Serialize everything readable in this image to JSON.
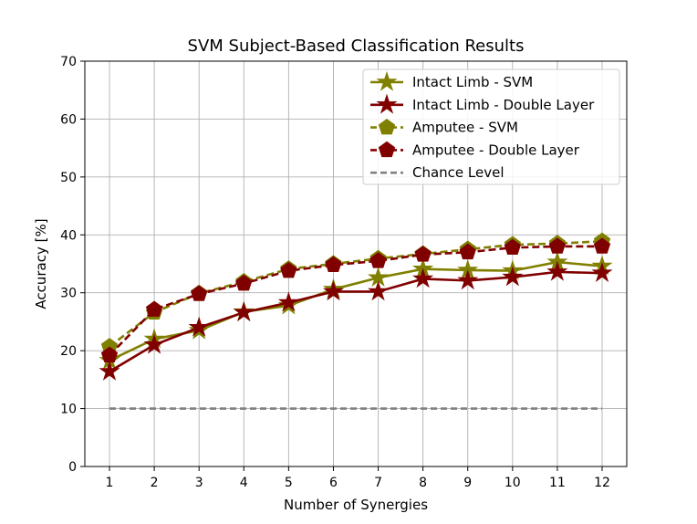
{
  "chart_data": {
    "type": "line",
    "title": "SVM Subject-Based Classification Results",
    "xlabel": "Number of Synergies",
    "ylabel": "Accuracy [%]",
    "x": [
      1,
      2,
      3,
      4,
      5,
      6,
      7,
      8,
      9,
      10,
      11,
      12
    ],
    "xticks": [
      "1",
      "2",
      "3",
      "4",
      "5",
      "6",
      "7",
      "8",
      "9",
      "10",
      "11",
      "12"
    ],
    "yticks": [
      "0",
      "10",
      "20",
      "30",
      "40",
      "50",
      "60",
      "70"
    ],
    "xlim": [
      0.45,
      12.55
    ],
    "ylim": [
      0,
      70
    ],
    "grid": true,
    "legend_position": "top-right",
    "series": [
      {
        "name": "Intact Limb - SVM",
        "color": "#808000",
        "marker": "star",
        "linestyle": "solid",
        "values": [
          18.3,
          22.0,
          23.5,
          26.7,
          27.8,
          30.6,
          32.6,
          34.1,
          33.9,
          33.8,
          35.3,
          34.6
        ]
      },
      {
        "name": "Intact Limb - Double Layer",
        "color": "#800000",
        "marker": "star",
        "linestyle": "solid",
        "values": [
          16.4,
          21.0,
          24.0,
          26.6,
          28.3,
          30.2,
          30.2,
          32.4,
          32.1,
          32.7,
          33.6,
          33.4
        ]
      },
      {
        "name": "Amputee - SVM",
        "color": "#808000",
        "marker": "pentagon",
        "linestyle": "dashed",
        "values": [
          20.7,
          26.6,
          29.9,
          31.9,
          34.1,
          35.0,
          35.9,
          36.7,
          37.5,
          38.3,
          38.5,
          38.9
        ]
      },
      {
        "name": "Amputee - Double Layer",
        "color": "#800000",
        "marker": "pentagon",
        "linestyle": "dashed",
        "values": [
          19.2,
          27.1,
          29.8,
          31.6,
          33.8,
          34.8,
          35.5,
          36.6,
          37.0,
          37.8,
          38.0,
          38.0
        ]
      },
      {
        "name": "Chance Level",
        "color": "#808080",
        "marker": "none",
        "linestyle": "dashed",
        "values": [
          10,
          10,
          10,
          10,
          10,
          10,
          10,
          10,
          10,
          10,
          10,
          10
        ]
      }
    ]
  }
}
